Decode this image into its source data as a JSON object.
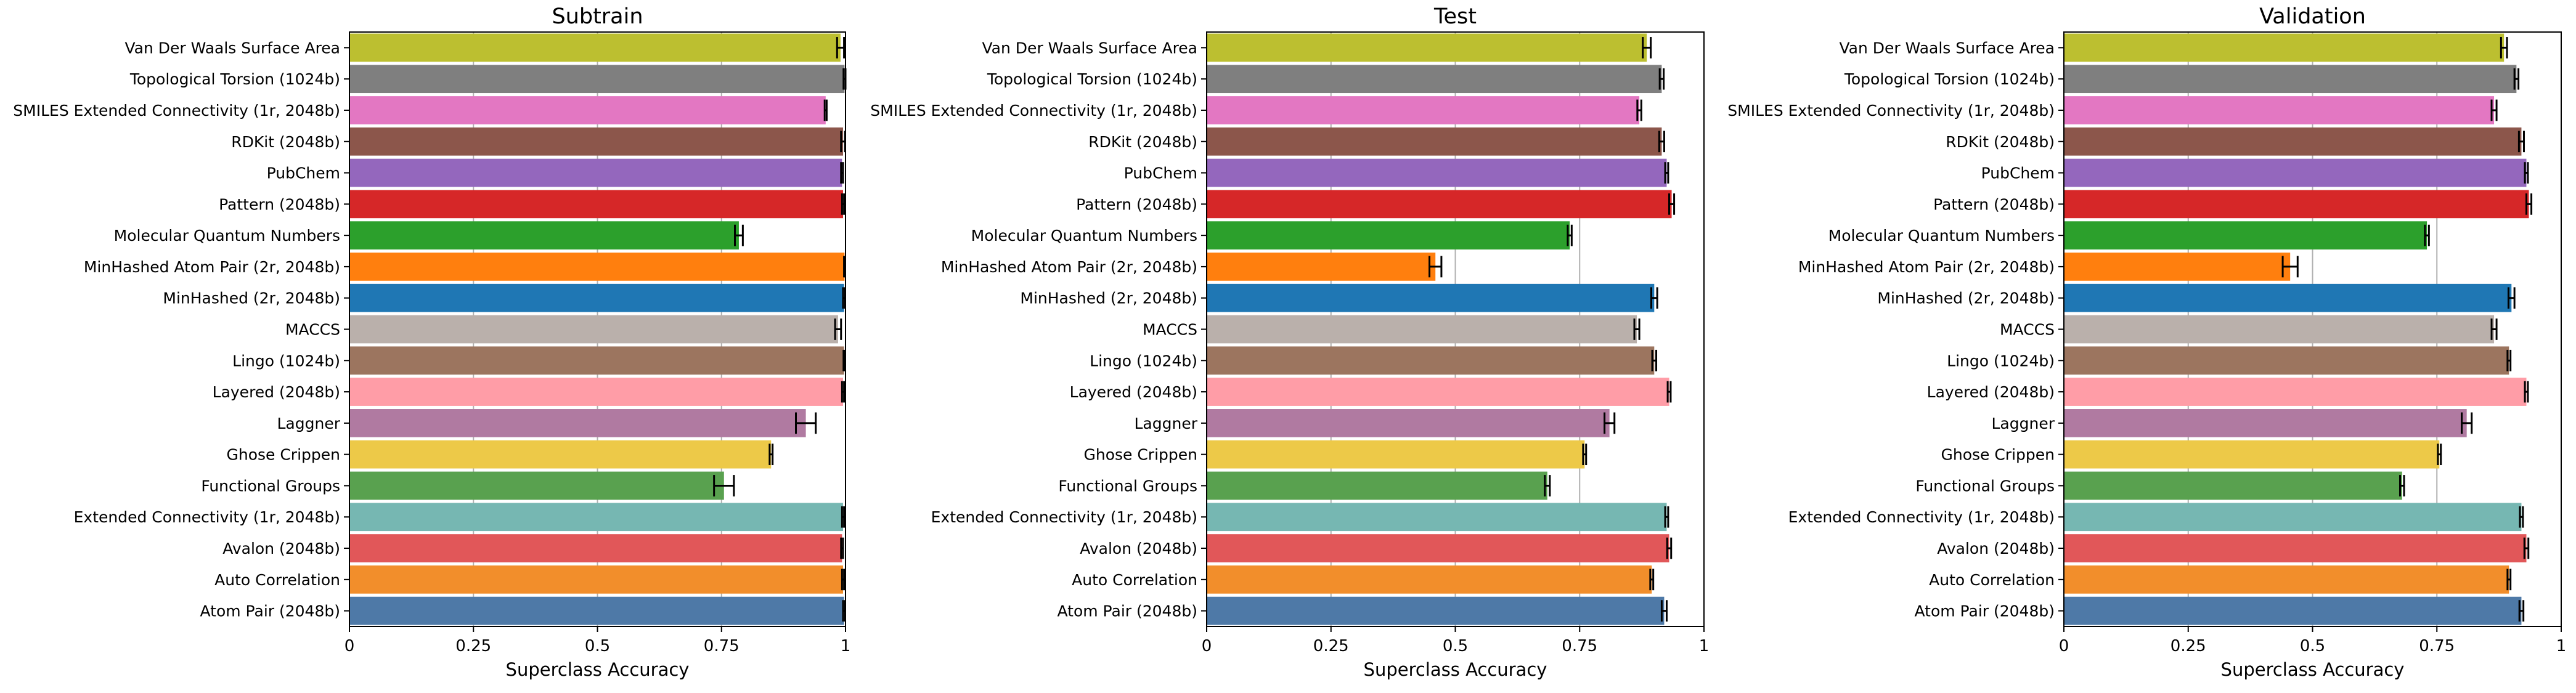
{
  "chart_data": {
    "type": "bar",
    "orientation": "horizontal",
    "categories": [
      "Van Der Waals Surface Area",
      "Topological Torsion (1024b)",
      "SMILES Extended Connectivity (1r, 2048b)",
      "RDKit (2048b)",
      "PubChem",
      "Pattern (2048b)",
      "Molecular Quantum Numbers",
      "MinHashed Atom Pair (2r, 2048b)",
      "MinHashed (2r, 2048b)",
      "MACCS",
      "Lingo (1024b)",
      "Layered (2048b)",
      "Laggner",
      "Ghose Crippen",
      "Functional Groups",
      "Extended Connectivity (1r, 2048b)",
      "Avalon (2048b)",
      "Auto Correlation",
      "Atom Pair (2048b)"
    ],
    "colors": [
      "#bcbf30",
      "#7f7f7f",
      "#e377c2",
      "#8c564b",
      "#9467bd",
      "#d62728",
      "#2ca02c",
      "#ff7f0e",
      "#1f77b4",
      "#bab0ab",
      "#9c755f",
      "#ff9da7",
      "#b07aa1",
      "#edc948",
      "#59a14f",
      "#76b7b2",
      "#e15759",
      "#f28e2b",
      "#4e79a7"
    ],
    "xlabel": "Superclass Accuracy",
    "xlim": [
      0,
      1
    ],
    "xticks": [
      "0",
      "0.25",
      "0.5",
      "0.75",
      "1"
    ],
    "grid": "vertical",
    "panels": [
      {
        "title": "Subtrain",
        "values": [
          0.99,
          0.998,
          0.96,
          0.995,
          0.993,
          0.995,
          0.785,
          0.998,
          0.997,
          0.985,
          0.997,
          0.995,
          0.92,
          0.85,
          0.755,
          0.995,
          0.993,
          0.995,
          0.997
        ],
        "errors": [
          0.007,
          0.002,
          0.002,
          0.004,
          0.002,
          0.002,
          0.008,
          0.001,
          0.002,
          0.006,
          0.001,
          0.002,
          0.02,
          0.003,
          0.02,
          0.002,
          0.002,
          0.002,
          0.002
        ]
      },
      {
        "title": "Test",
        "values": [
          0.885,
          0.915,
          0.87,
          0.915,
          0.925,
          0.935,
          0.73,
          0.46,
          0.9,
          0.865,
          0.9,
          0.93,
          0.81,
          0.76,
          0.685,
          0.925,
          0.93,
          0.895,
          0.92
        ],
        "errors": [
          0.008,
          0.004,
          0.004,
          0.005,
          0.003,
          0.005,
          0.004,
          0.012,
          0.006,
          0.005,
          0.004,
          0.003,
          0.01,
          0.003,
          0.005,
          0.003,
          0.004,
          0.003,
          0.005
        ]
      },
      {
        "title": "Validation",
        "values": [
          0.885,
          0.91,
          0.865,
          0.92,
          0.93,
          0.935,
          0.73,
          0.455,
          0.9,
          0.865,
          0.895,
          0.93,
          0.81,
          0.755,
          0.68,
          0.92,
          0.93,
          0.895,
          0.92
        ],
        "errors": [
          0.006,
          0.004,
          0.005,
          0.005,
          0.003,
          0.005,
          0.004,
          0.015,
          0.006,
          0.005,
          0.003,
          0.003,
          0.01,
          0.003,
          0.004,
          0.003,
          0.004,
          0.003,
          0.004
        ]
      }
    ]
  }
}
